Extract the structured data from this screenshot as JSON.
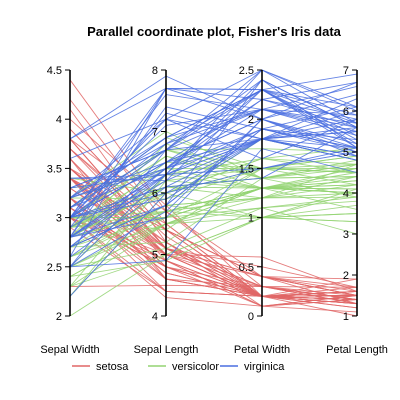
{
  "chart_data": {
    "type": "parallel-coordinates",
    "title": "Parallel coordinate plot, Fisher's Iris data",
    "axes": [
      {
        "name": "Sepal Width",
        "range": [
          2,
          4.5
        ],
        "ticks": [
          "2",
          "2.5",
          "3",
          "3.5",
          "4",
          "4.5"
        ],
        "tick_values": [
          2,
          2.5,
          3,
          3.5,
          4,
          4.5
        ]
      },
      {
        "name": "Sepal Length",
        "range": [
          4,
          8
        ],
        "ticks": [
          "4",
          "5",
          "6",
          "7",
          "8"
        ],
        "tick_values": [
          4,
          5,
          6,
          7,
          8
        ]
      },
      {
        "name": "Petal Width",
        "range": [
          0,
          2.5
        ],
        "ticks": [
          "0",
          "0.5",
          "1",
          "1.5",
          "2",
          "2.5"
        ],
        "tick_values": [
          0,
          0.5,
          1,
          1.5,
          2,
          2.5
        ]
      },
      {
        "name": "Petal Length",
        "range": [
          1,
          7
        ],
        "ticks": [
          "1",
          "2",
          "3",
          "4",
          "5",
          "6",
          "7"
        ],
        "tick_values": [
          1,
          2,
          3,
          4,
          5,
          6,
          7
        ]
      }
    ],
    "legend_position": "bottom",
    "grid": false,
    "series": [
      {
        "name": "setosa",
        "color": "#e06666",
        "lines": [
          [
            3.5,
            5.1,
            0.2,
            1.4
          ],
          [
            3.0,
            4.9,
            0.2,
            1.4
          ],
          [
            3.2,
            4.7,
            0.2,
            1.3
          ],
          [
            3.1,
            4.6,
            0.2,
            1.5
          ],
          [
            3.6,
            5.0,
            0.2,
            1.4
          ],
          [
            3.9,
            5.4,
            0.4,
            1.7
          ],
          [
            3.4,
            4.6,
            0.3,
            1.4
          ],
          [
            3.4,
            5.0,
            0.2,
            1.5
          ],
          [
            2.9,
            4.4,
            0.2,
            1.4
          ],
          [
            3.1,
            4.9,
            0.1,
            1.5
          ],
          [
            3.7,
            5.4,
            0.2,
            1.5
          ],
          [
            3.4,
            4.8,
            0.2,
            1.6
          ],
          [
            3.0,
            4.8,
            0.1,
            1.4
          ],
          [
            3.0,
            4.3,
            0.1,
            1.1
          ],
          [
            4.0,
            5.8,
            0.2,
            1.2
          ],
          [
            4.4,
            5.7,
            0.4,
            1.5
          ],
          [
            3.9,
            5.4,
            0.4,
            1.3
          ],
          [
            3.5,
            5.1,
            0.3,
            1.4
          ],
          [
            3.8,
            5.7,
            0.3,
            1.7
          ],
          [
            3.8,
            5.1,
            0.3,
            1.5
          ],
          [
            3.4,
            5.4,
            0.2,
            1.7
          ],
          [
            3.7,
            5.1,
            0.4,
            1.5
          ],
          [
            3.6,
            4.6,
            0.2,
            1.0
          ],
          [
            3.3,
            5.1,
            0.5,
            1.7
          ],
          [
            3.4,
            4.8,
            0.2,
            1.9
          ],
          [
            3.0,
            5.0,
            0.2,
            1.6
          ],
          [
            3.4,
            5.0,
            0.4,
            1.6
          ],
          [
            3.5,
            5.2,
            0.2,
            1.5
          ],
          [
            3.4,
            5.2,
            0.2,
            1.4
          ],
          [
            3.2,
            4.7,
            0.2,
            1.6
          ],
          [
            3.1,
            4.8,
            0.2,
            1.6
          ],
          [
            3.4,
            5.4,
            0.4,
            1.5
          ],
          [
            4.1,
            5.2,
            0.1,
            1.5
          ],
          [
            4.2,
            5.5,
            0.2,
            1.4
          ],
          [
            3.1,
            4.9,
            0.2,
            1.5
          ],
          [
            3.2,
            5.0,
            0.2,
            1.2
          ],
          [
            3.5,
            5.5,
            0.2,
            1.3
          ],
          [
            3.6,
            4.9,
            0.1,
            1.4
          ],
          [
            3.0,
            4.4,
            0.2,
            1.3
          ],
          [
            3.4,
            5.1,
            0.2,
            1.5
          ],
          [
            3.5,
            5.0,
            0.3,
            1.3
          ],
          [
            2.3,
            4.5,
            0.3,
            1.3
          ],
          [
            3.2,
            4.4,
            0.2,
            1.3
          ],
          [
            3.5,
            5.0,
            0.6,
            1.6
          ],
          [
            3.8,
            5.1,
            0.4,
            1.9
          ],
          [
            3.0,
            4.8,
            0.3,
            1.4
          ],
          [
            3.8,
            5.1,
            0.2,
            1.6
          ],
          [
            3.2,
            4.6,
            0.2,
            1.4
          ],
          [
            3.7,
            5.3,
            0.2,
            1.5
          ],
          [
            3.3,
            5.0,
            0.2,
            1.4
          ]
        ]
      },
      {
        "name": "versicolor",
        "color": "#93d372",
        "lines": [
          [
            3.2,
            7.0,
            1.4,
            4.7
          ],
          [
            3.2,
            6.4,
            1.5,
            4.5
          ],
          [
            3.1,
            6.9,
            1.5,
            4.9
          ],
          [
            2.3,
            5.5,
            1.3,
            4.0
          ],
          [
            2.8,
            6.5,
            1.5,
            4.6
          ],
          [
            2.8,
            5.7,
            1.3,
            4.5
          ],
          [
            3.3,
            6.3,
            1.6,
            4.7
          ],
          [
            2.4,
            4.9,
            1.0,
            3.3
          ],
          [
            2.9,
            6.6,
            1.3,
            4.6
          ],
          [
            2.7,
            5.2,
            1.4,
            3.9
          ],
          [
            2.0,
            5.0,
            1.0,
            3.5
          ],
          [
            3.0,
            5.9,
            1.5,
            4.2
          ],
          [
            2.2,
            6.0,
            1.0,
            4.0
          ],
          [
            2.9,
            6.1,
            1.4,
            4.7
          ],
          [
            2.9,
            5.6,
            1.3,
            3.6
          ],
          [
            3.1,
            6.7,
            1.4,
            4.4
          ],
          [
            3.0,
            5.6,
            1.5,
            4.5
          ],
          [
            2.7,
            5.8,
            1.0,
            4.1
          ],
          [
            2.2,
            6.2,
            1.5,
            4.5
          ],
          [
            2.5,
            5.6,
            1.1,
            3.9
          ],
          [
            3.2,
            5.9,
            1.8,
            4.8
          ],
          [
            2.8,
            6.1,
            1.3,
            4.0
          ],
          [
            2.5,
            6.3,
            1.5,
            4.9
          ],
          [
            2.8,
            6.1,
            1.2,
            4.7
          ],
          [
            2.9,
            6.4,
            1.3,
            4.3
          ],
          [
            3.0,
            6.6,
            1.4,
            4.4
          ],
          [
            2.8,
            6.8,
            1.4,
            4.8
          ],
          [
            3.0,
            6.7,
            1.7,
            5.0
          ],
          [
            2.9,
            6.0,
            1.5,
            4.5
          ],
          [
            2.6,
            5.7,
            1.0,
            3.5
          ],
          [
            2.4,
            5.5,
            1.1,
            3.8
          ],
          [
            2.4,
            5.5,
            1.0,
            3.7
          ],
          [
            2.7,
            5.8,
            1.2,
            3.9
          ],
          [
            2.7,
            6.0,
            1.6,
            5.1
          ],
          [
            3.0,
            5.4,
            1.5,
            4.5
          ],
          [
            3.4,
            6.0,
            1.6,
            4.5
          ],
          [
            3.1,
            6.7,
            1.5,
            4.7
          ],
          [
            2.3,
            6.3,
            1.3,
            4.4
          ],
          [
            3.0,
            5.6,
            1.3,
            4.1
          ],
          [
            2.5,
            5.5,
            1.3,
            4.0
          ],
          [
            2.6,
            5.5,
            1.2,
            4.4
          ],
          [
            3.0,
            6.1,
            1.4,
            4.6
          ],
          [
            2.6,
            5.8,
            1.2,
            4.0
          ],
          [
            2.3,
            5.0,
            1.0,
            3.3
          ],
          [
            2.7,
            5.6,
            1.3,
            4.2
          ],
          [
            3.0,
            5.7,
            1.2,
            4.2
          ],
          [
            2.9,
            5.7,
            1.3,
            4.2
          ],
          [
            2.9,
            6.2,
            1.3,
            4.3
          ],
          [
            2.5,
            5.1,
            1.1,
            3.0
          ],
          [
            2.8,
            5.7,
            1.3,
            4.1
          ]
        ]
      },
      {
        "name": "virginica",
        "color": "#4a6fe0",
        "lines": [
          [
            3.3,
            6.3,
            2.5,
            6.0
          ],
          [
            2.7,
            5.8,
            1.9,
            5.1
          ],
          [
            3.0,
            7.1,
            2.1,
            5.9
          ],
          [
            2.9,
            6.3,
            1.8,
            5.6
          ],
          [
            3.0,
            6.5,
            2.2,
            5.8
          ],
          [
            3.0,
            7.6,
            2.1,
            6.6
          ],
          [
            2.5,
            4.9,
            1.7,
            4.5
          ],
          [
            2.9,
            7.3,
            1.8,
            6.3
          ],
          [
            2.5,
            6.7,
            1.8,
            5.8
          ],
          [
            3.6,
            7.2,
            2.5,
            6.1
          ],
          [
            3.2,
            6.5,
            2.0,
            5.1
          ],
          [
            2.7,
            6.4,
            1.9,
            5.3
          ],
          [
            3.0,
            6.8,
            2.1,
            5.5
          ],
          [
            2.5,
            5.7,
            2.0,
            5.0
          ],
          [
            2.8,
            5.8,
            2.4,
            5.1
          ],
          [
            3.2,
            6.4,
            2.3,
            5.3
          ],
          [
            3.0,
            6.5,
            1.8,
            5.5
          ],
          [
            3.8,
            7.7,
            2.2,
            6.7
          ],
          [
            2.6,
            7.7,
            2.3,
            6.9
          ],
          [
            2.2,
            6.0,
            1.5,
            5.0
          ],
          [
            3.2,
            6.9,
            2.3,
            5.7
          ],
          [
            2.8,
            5.6,
            2.0,
            4.9
          ],
          [
            2.8,
            7.7,
            2.0,
            6.7
          ],
          [
            2.7,
            6.3,
            1.8,
            4.9
          ],
          [
            3.3,
            6.7,
            2.1,
            5.7
          ],
          [
            3.2,
            7.2,
            1.8,
            6.0
          ],
          [
            2.8,
            6.2,
            1.8,
            4.8
          ],
          [
            3.0,
            6.1,
            1.8,
            4.9
          ],
          [
            2.8,
            6.4,
            2.1,
            5.6
          ],
          [
            3.0,
            7.2,
            1.6,
            5.8
          ],
          [
            2.8,
            7.4,
            1.9,
            6.1
          ],
          [
            3.8,
            7.9,
            2.0,
            6.4
          ],
          [
            2.8,
            6.4,
            2.2,
            5.6
          ],
          [
            2.8,
            6.3,
            1.5,
            5.1
          ],
          [
            2.6,
            6.1,
            1.4,
            5.6
          ],
          [
            3.0,
            7.7,
            2.3,
            6.1
          ],
          [
            3.4,
            6.3,
            2.4,
            5.6
          ],
          [
            3.1,
            6.4,
            1.8,
            5.5
          ],
          [
            3.0,
            6.0,
            1.8,
            4.8
          ],
          [
            3.1,
            6.9,
            2.1,
            5.4
          ],
          [
            3.1,
            6.7,
            2.4,
            5.6
          ],
          [
            3.1,
            6.9,
            2.3,
            5.1
          ],
          [
            2.7,
            5.8,
            1.9,
            5.1
          ],
          [
            3.2,
            6.8,
            2.3,
            5.9
          ],
          [
            3.3,
            6.7,
            2.5,
            5.7
          ],
          [
            3.0,
            6.7,
            2.3,
            5.2
          ],
          [
            2.5,
            6.3,
            1.9,
            5.0
          ],
          [
            3.0,
            6.5,
            2.0,
            5.2
          ],
          [
            3.4,
            6.2,
            2.3,
            5.4
          ],
          [
            3.0,
            5.9,
            1.8,
            5.1
          ]
        ]
      }
    ]
  }
}
